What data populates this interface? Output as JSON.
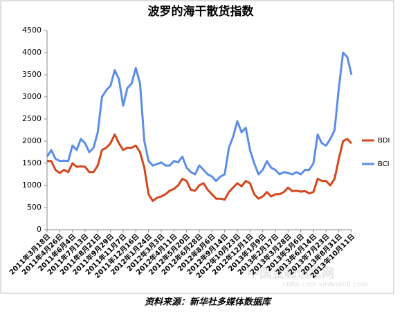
{
  "chart_data": {
    "type": "line",
    "title": "波罗的海干散货指数",
    "source": "资料来源：新华社多媒体数据库",
    "watermark": [
      "中国金融信息网",
      "cnfin.com  xinhua08.com"
    ],
    "categories": [
      "2011年3月18日",
      null,
      null,
      "2011年4月26日",
      null,
      null,
      "2011年6月4日",
      null,
      null,
      "2011年7月13日",
      null,
      null,
      "2011年8月21日",
      null,
      null,
      "2011年9月29日",
      null,
      null,
      "2011年11月7日",
      null,
      null,
      "2011年12月16日",
      null,
      null,
      "2012年1月24日",
      null,
      null,
      "2012年3月3日",
      null,
      null,
      "2012年4月11日",
      null,
      null,
      "2012年5月20日",
      null,
      null,
      "2012年6月28日",
      null,
      null,
      "2012年8月6日",
      null,
      null,
      "2012年9月14日",
      null,
      null,
      "2012年10月23日",
      null,
      null,
      "2012年12月1日",
      null,
      null,
      "2013年1月9日",
      null,
      null,
      "2013年2月17日",
      null,
      null,
      "2013年3月28日",
      null,
      null,
      "2013年5月6日",
      null,
      null,
      "2013年6月14日",
      null,
      null,
      "2013年7月23日",
      null,
      null,
      "2013年8月31日",
      null,
      null,
      "2013年10月11日"
    ],
    "series": [
      {
        "name": "BDI",
        "color": "#d4461c",
        "values": [
          1550,
          1550,
          1350,
          1280,
          1350,
          1300,
          1500,
          1420,
          1430,
          1420,
          1300,
          1300,
          1450,
          1800,
          1850,
          1950,
          2150,
          1950,
          1800,
          1850,
          1850,
          1900,
          1750,
          1400,
          800,
          650,
          720,
          750,
          800,
          880,
          920,
          1000,
          1150,
          1100,
          900,
          880,
          1000,
          1050,
          900,
          800,
          700,
          700,
          680,
          850,
          950,
          1050,
          980,
          1100,
          1050,
          800,
          700,
          750,
          850,
          750,
          800,
          800,
          850,
          950,
          870,
          880,
          860,
          870,
          820,
          850,
          1150,
          1100,
          1100,
          1000,
          1150,
          1600,
          2000,
          2050,
          1950
        ]
      },
      {
        "name": "BCI",
        "color": "#5b8de6",
        "values": [
          1650,
          1800,
          1600,
          1550,
          1560,
          1550,
          1900,
          1800,
          2050,
          1950,
          1750,
          1850,
          2200,
          3000,
          3150,
          3250,
          3600,
          3400,
          2800,
          3200,
          3300,
          3650,
          3300,
          2000,
          1550,
          1450,
          1480,
          1520,
          1450,
          1450,
          1550,
          1520,
          1650,
          1400,
          1300,
          1250,
          1450,
          1350,
          1250,
          1200,
          1100,
          1200,
          1250,
          1850,
          2100,
          2450,
          2200,
          2300,
          1800,
          1500,
          1250,
          1350,
          1550,
          1400,
          1350,
          1250,
          1300,
          1280,
          1250,
          1300,
          1250,
          1350,
          1350,
          1500,
          2150,
          1950,
          1900,
          2050,
          2250,
          3200,
          4000,
          3900,
          3500
        ]
      }
    ],
    "ylim": [
      0,
      4500
    ],
    "yticks": [
      0,
      500,
      1000,
      1500,
      2000,
      2500,
      3000,
      3500,
      4000,
      4500
    ],
    "grid": false,
    "legend": "right"
  }
}
